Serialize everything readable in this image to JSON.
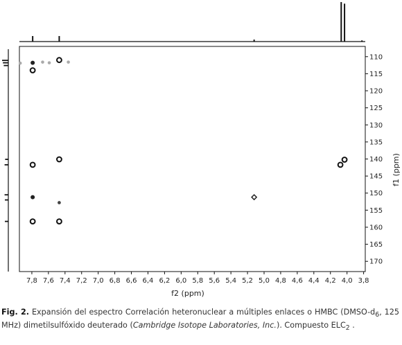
{
  "chart_data": {
    "type": "scatter",
    "x_axis": {
      "label": "f2 (ppm)",
      "range": [
        7.95,
        3.78
      ],
      "reversed": true,
      "ticks": [
        "7,8",
        "7,6",
        "7,4",
        "7,2",
        "7,0",
        "6,8",
        "6,6",
        "6,4",
        "6,2",
        "6,0",
        "5,8",
        "5,6",
        "5,4",
        "5,2",
        "5,0",
        "4,8",
        "4,6",
        "4,4",
        "4,2",
        "4,0",
        "3,8"
      ],
      "tick_values": [
        7.8,
        7.6,
        7.4,
        7.2,
        7.0,
        6.8,
        6.6,
        6.4,
        6.2,
        6.0,
        5.8,
        5.6,
        5.4,
        5.2,
        5.0,
        4.8,
        4.6,
        4.4,
        4.2,
        4.0,
        3.8
      ]
    },
    "y_axis": {
      "label": "f1 (ppm)",
      "range": [
        107,
        173
      ],
      "reversed": true,
      "position": "right",
      "ticks": [
        "110",
        "115",
        "120",
        "125",
        "130",
        "135",
        "140",
        "145",
        "150",
        "155",
        "160",
        "165",
        "170"
      ],
      "tick_values": [
        110,
        115,
        120,
        125,
        130,
        135,
        140,
        145,
        150,
        155,
        160,
        165,
        170
      ]
    },
    "grid": false,
    "legend": "none",
    "cross_peaks": [
      {
        "x": 7.79,
        "y": 111.8,
        "style": "dot"
      },
      {
        "x": 7.47,
        "y": 111.0,
        "style": "ring"
      },
      {
        "x": 7.79,
        "y": 114.0,
        "style": "ring"
      },
      {
        "x": 7.47,
        "y": 140.1,
        "style": "ring"
      },
      {
        "x": 7.79,
        "y": 141.7,
        "style": "ring"
      },
      {
        "x": 4.03,
        "y": 140.2,
        "style": "ring"
      },
      {
        "x": 4.08,
        "y": 141.7,
        "style": "ring"
      },
      {
        "x": 7.79,
        "y": 151.2,
        "style": "dot"
      },
      {
        "x": 7.47,
        "y": 152.8,
        "style": "small-dot"
      },
      {
        "x": 5.12,
        "y": 151.2,
        "style": "diamond"
      },
      {
        "x": 7.79,
        "y": 158.3,
        "style": "ring"
      },
      {
        "x": 7.47,
        "y": 158.3,
        "style": "ring"
      },
      {
        "x": 7.94,
        "y": 111.9,
        "style": "faint"
      },
      {
        "x": 7.67,
        "y": 111.6,
        "style": "faint"
      },
      {
        "x": 7.59,
        "y": 111.8,
        "style": "faint"
      },
      {
        "x": 7.36,
        "y": 111.6,
        "style": "faint"
      }
    ],
    "f2_projection": [
      {
        "x": 7.79,
        "height": 0.14
      },
      {
        "x": 7.47,
        "height": 0.14
      },
      {
        "x": 5.12,
        "height": 0.05
      },
      {
        "x": 4.07,
        "height": 1.0
      },
      {
        "x": 4.03,
        "height": 0.96
      },
      {
        "x": 3.82,
        "height": 0.03
      }
    ],
    "f1_projection": [
      {
        "y": 111.1,
        "height": 1.0
      },
      {
        "y": 111.8,
        "height": 0.85
      },
      {
        "y": 112.6,
        "height": 0.7
      },
      {
        "y": 140.1,
        "height": 0.45
      },
      {
        "y": 141.7,
        "height": 0.55
      },
      {
        "y": 150.5,
        "height": 0.55
      },
      {
        "y": 152.0,
        "height": 0.5
      },
      {
        "y": 158.3,
        "height": 0.5
      }
    ]
  },
  "caption": {
    "label": "Fig. 2.",
    "text_1": "Expansión del espectro Correlación heteronuclear a múltiples enlaces o HMBC (DMSO-d",
    "sub_1": "6",
    "text_2": ", 125 MHz) dimetilsulfóxido deuterado (",
    "italic": "Cambridge Isotope Laboratories, Inc.",
    "text_3": "). Compuesto ELC",
    "sub_2": "2",
    "text_4": " ."
  }
}
